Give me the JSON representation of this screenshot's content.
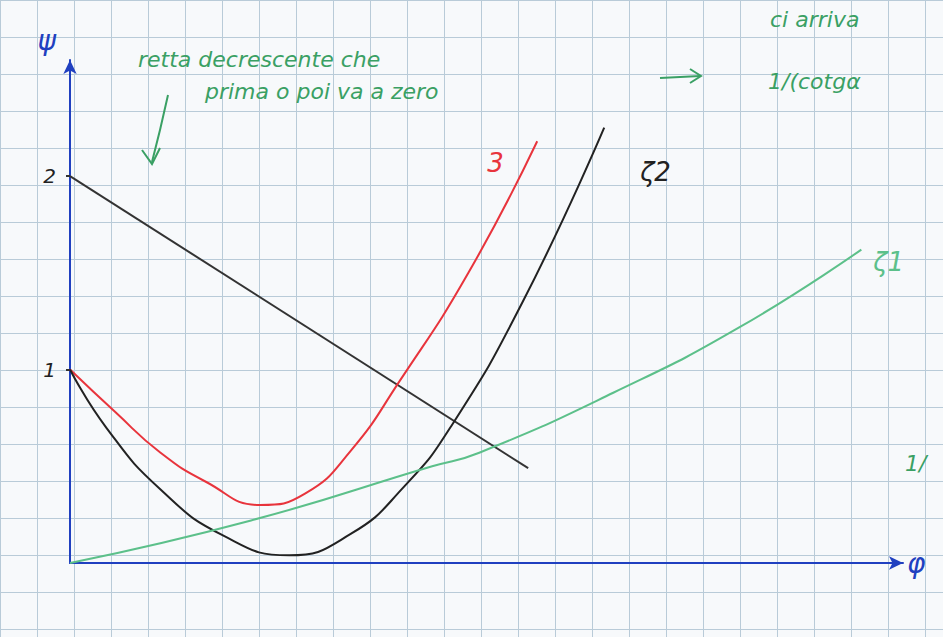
{
  "chart_data": {
    "type": "line",
    "x_label": "φ",
    "y_label": "ψ",
    "xlim": [
      0,
      4.6
    ],
    "ylim": [
      0,
      2.6
    ],
    "yticks": [
      1,
      2
    ],
    "tick_labels": "y",
    "grid": true,
    "series": [
      {
        "color": "#333333",
        "line_style": "solid",
        "x": [
          0,
          2.53
        ],
        "values": [
          2,
          0.49
        ]
      },
      {
        "name": "3",
        "color": "#e8343c",
        "line_style": "solid",
        "x": [
          0,
          0.25,
          0.5,
          0.75,
          1.05,
          1.3,
          1.55,
          1.82,
          2.2,
          2.58
        ],
        "values": [
          1,
          0.78,
          0.57,
          0.42,
          0.3,
          0.36,
          0.58,
          0.94,
          1.5,
          2.18
        ]
      },
      {
        "name": "ζ2",
        "color": "#222222",
        "line_style": "solid",
        "x": [
          0,
          0.2,
          0.5,
          0.85,
          1.21,
          1.55,
          1.85,
          2.1,
          2.5,
          2.95
        ],
        "values": [
          1,
          0.7,
          0.38,
          0.14,
          0.04,
          0.15,
          0.4,
          0.7,
          1.35,
          2.25
        ]
      },
      {
        "name": "ζ1",
        "color": "#5cc08a",
        "line_style": "solid",
        "x": [
          0,
          1,
          2,
          2.26,
          3,
          3.7,
          4.37
        ],
        "values": [
          0,
          0.22,
          0.5,
          0.57,
          0.88,
          1.22,
          1.62
        ]
      }
    ],
    "annotations": [
      {
        "text": "retta decrescente che",
        "color": "#3aa064"
      },
      {
        "text": "prima o poi va a zero",
        "color": "#3aa064"
      },
      {
        "text": "ci arriva",
        "color": "#3aa064"
      },
      {
        "text": "1/(cotgα",
        "color": "#3aa064"
      },
      {
        "text": "1/",
        "color": "#3aa064"
      }
    ]
  }
}
